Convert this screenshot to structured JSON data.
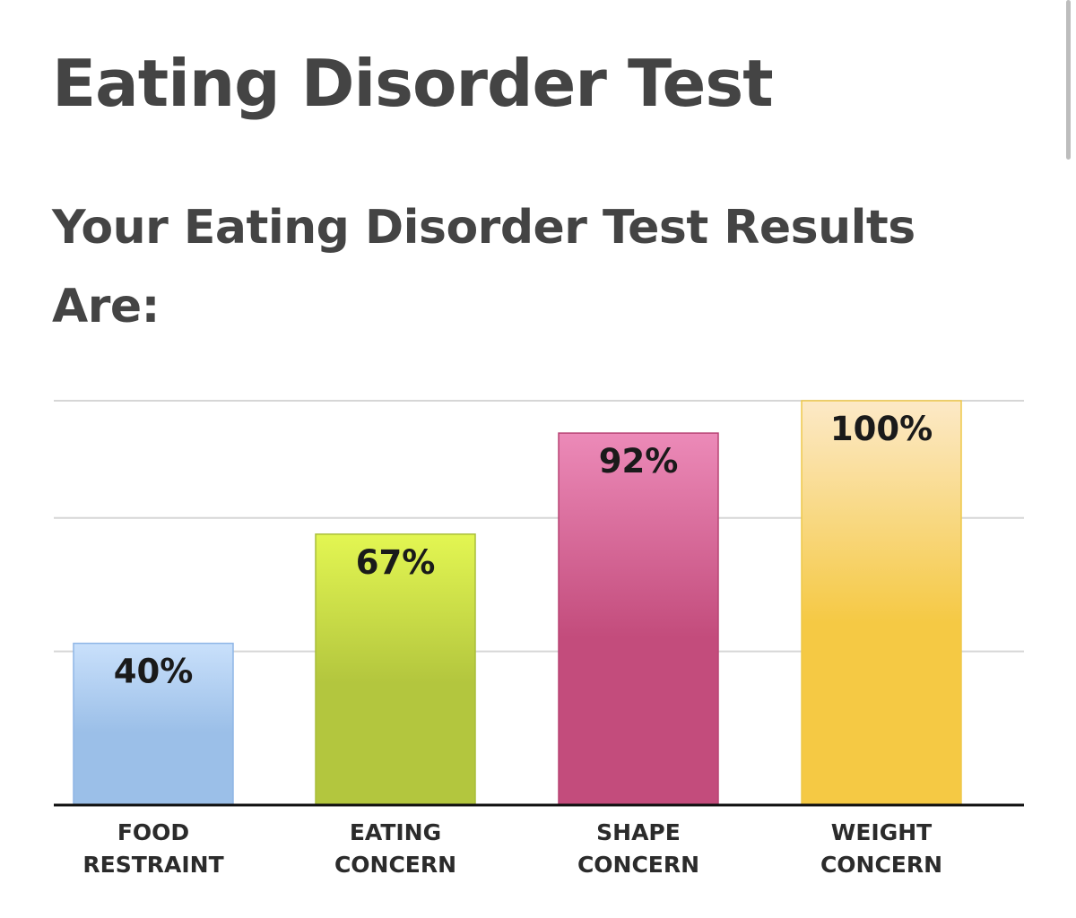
{
  "page": {
    "title": "Eating Disorder Test",
    "subtitle": "Your Eating Disorder Test Results Are:"
  },
  "chart_data": {
    "type": "bar",
    "categories": [
      [
        "FOOD",
        "RESTRAINT"
      ],
      [
        "EATING",
        "CONCERN"
      ],
      [
        "SHAPE",
        "CONCERN"
      ],
      [
        "WEIGHT",
        "CONCERN"
      ]
    ],
    "values": [
      40,
      67,
      92,
      100
    ],
    "value_labels": [
      "40%",
      "67%",
      "92%",
      "100%"
    ],
    "ylim": [
      0,
      100
    ],
    "grid": true,
    "colors": [
      {
        "top": "#c9e0fb",
        "bottom": "#9bbfe8",
        "stroke": "#8fb6e6"
      },
      {
        "top": "#e3f652",
        "bottom": "#b3c63e",
        "stroke": "#a9bd3a"
      },
      {
        "top": "#ec8ab8",
        "bottom": "#c34c7c",
        "stroke": "#b84474"
      },
      {
        "top": "#fce9c7",
        "bottom": "#f5c944",
        "stroke": "#eec84a"
      }
    ]
  }
}
